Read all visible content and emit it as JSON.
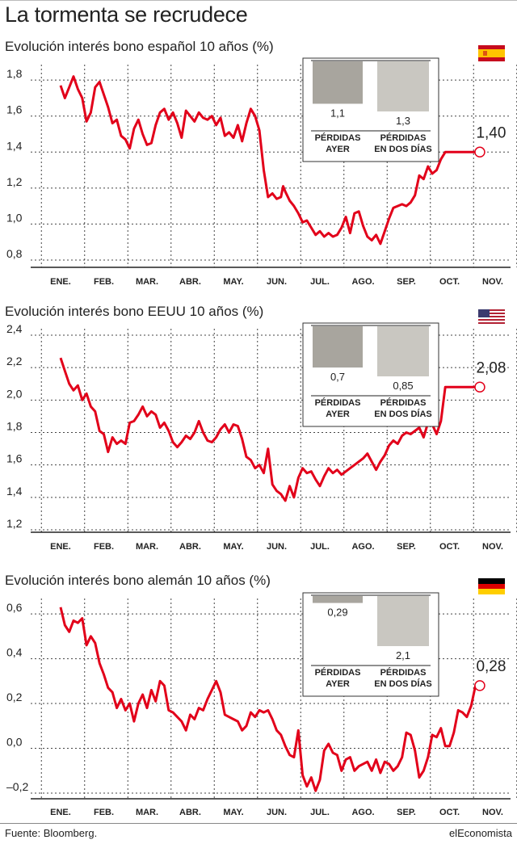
{
  "title": "La tormenta se recrudece",
  "source": "Fuente: Bloomberg.",
  "brand": "elEconomista",
  "chart_data": [
    {
      "type": "line",
      "title": "Evolución interés bono español 10 años (%)",
      "flag": "spain-flag-icon",
      "color": "#e2001a",
      "categories": [
        "ENE.",
        "FEB.",
        "MAR.",
        "ABR.",
        "MAY.",
        "JUN.",
        "JUL.",
        "AGO.",
        "SEP.",
        "OCT.",
        "NOV."
      ],
      "yticks": [
        "0,8",
        "1,0",
        "1,2",
        "1,4",
        "1,6",
        "1,8"
      ],
      "ylim": [
        0.8,
        1.85
      ],
      "last_value": 1.4,
      "last_label": "1,40",
      "x": [
        0.0,
        0.1,
        0.2,
        0.3,
        0.4,
        0.5,
        0.6,
        0.7,
        0.8,
        0.9,
        1.0,
        1.1,
        1.2,
        1.3,
        1.4,
        1.5,
        1.6,
        1.7,
        1.8,
        1.9,
        2.0,
        2.1,
        2.2,
        2.3,
        2.4,
        2.5,
        2.6,
        2.7,
        2.8,
        2.9,
        3.0,
        3.1,
        3.2,
        3.3,
        3.4,
        3.5,
        3.6,
        3.7,
        3.8,
        3.9,
        4.0,
        4.1,
        4.2,
        4.3,
        4.4,
        4.5,
        4.6,
        4.7,
        4.8,
        4.9,
        5.0,
        5.1,
        5.15,
        5.2,
        5.3,
        5.4,
        5.5,
        5.6,
        5.7,
        5.8,
        5.9,
        6.0,
        6.1,
        6.2,
        6.3,
        6.4,
        6.5,
        6.6,
        6.7,
        6.8,
        6.9,
        7.0,
        7.1,
        7.2,
        7.3,
        7.4,
        7.5,
        7.6,
        7.7,
        7.8,
        7.9,
        8.0,
        8.1,
        8.2,
        8.3,
        8.4,
        8.5,
        8.6,
        8.7,
        8.8,
        8.9,
        9.0,
        9.1,
        9.2,
        9.3,
        9.4,
        9.5,
        9.6,
        9.65,
        9.7
      ],
      "values": [
        1.77,
        1.7,
        1.76,
        1.82,
        1.75,
        1.7,
        1.57,
        1.62,
        1.76,
        1.79,
        1.72,
        1.65,
        1.56,
        1.58,
        1.49,
        1.47,
        1.42,
        1.53,
        1.58,
        1.5,
        1.44,
        1.45,
        1.55,
        1.62,
        1.64,
        1.58,
        1.62,
        1.56,
        1.48,
        1.63,
        1.6,
        1.57,
        1.62,
        1.59,
        1.58,
        1.6,
        1.55,
        1.59,
        1.49,
        1.51,
        1.48,
        1.55,
        1.46,
        1.56,
        1.64,
        1.6,
        1.52,
        1.3,
        1.15,
        1.17,
        1.14,
        1.15,
        1.21,
        1.18,
        1.13,
        1.1,
        1.06,
        1.01,
        1.02,
        0.98,
        0.94,
        0.96,
        0.93,
        0.95,
        0.93,
        0.94,
        0.98,
        1.04,
        0.95,
        1.06,
        1.07,
        0.99,
        0.93,
        0.91,
        0.94,
        0.89,
        0.96,
        1.03,
        1.09,
        1.1,
        1.11,
        1.1,
        1.12,
        1.16,
        1.27,
        1.25,
        1.32,
        1.28,
        1.3,
        1.36,
        1.4,
        1.4,
        1.4,
        1.4,
        1.4,
        1.4,
        1.4,
        1.4,
        1.4,
        1.4
      ],
      "inset": {
        "bars": [
          {
            "value": 1.1,
            "label": "1,1",
            "caption1": "PÉRDIDAS",
            "caption2": "AYER",
            "color": "#a8a59e"
          },
          {
            "value": 1.3,
            "label": "1,3",
            "caption1": "PÉRDIDAS",
            "caption2": "EN DOS DÍAS",
            "color": "#c9c7c1"
          }
        ]
      }
    },
    {
      "type": "line",
      "title": "Evolución interés bono EEUU 10 años (%)",
      "flag": "usa-flag-icon",
      "color": "#e2001a",
      "categories": [
        "ENE.",
        "FEB.",
        "MAR.",
        "ABR.",
        "MAY.",
        "JUN.",
        "JUL.",
        "AGO.",
        "SEP.",
        "OCT.",
        "NOV."
      ],
      "yticks": [
        "1,2",
        "1,4",
        "1,6",
        "1,8",
        "2,0",
        "2,2",
        "2,4"
      ],
      "ylim": [
        1.2,
        2.4
      ],
      "last_value": 2.08,
      "last_label": "2,08",
      "x": [
        0.0,
        0.1,
        0.2,
        0.3,
        0.4,
        0.5,
        0.6,
        0.7,
        0.8,
        0.9,
        1.0,
        1.1,
        1.2,
        1.3,
        1.4,
        1.5,
        1.6,
        1.7,
        1.8,
        1.9,
        2.0,
        2.1,
        2.2,
        2.3,
        2.4,
        2.5,
        2.6,
        2.7,
        2.8,
        2.9,
        3.0,
        3.1,
        3.2,
        3.3,
        3.4,
        3.5,
        3.6,
        3.7,
        3.8,
        3.9,
        4.0,
        4.1,
        4.2,
        4.3,
        4.4,
        4.5,
        4.6,
        4.7,
        4.8,
        4.9,
        5.0,
        5.1,
        5.2,
        5.3,
        5.4,
        5.5,
        5.6,
        5.7,
        5.8,
        5.9,
        6.0,
        6.1,
        6.2,
        6.3,
        6.4,
        6.5,
        6.6,
        6.7,
        6.8,
        6.9,
        7.0,
        7.1,
        7.2,
        7.3,
        7.4,
        7.5,
        7.6,
        7.7,
        7.8,
        7.9,
        8.0,
        8.1,
        8.2,
        8.3,
        8.4,
        8.5,
        8.6,
        8.7,
        8.8,
        8.9,
        9.0,
        9.1,
        9.2,
        9.3,
        9.4,
        9.5,
        9.6,
        9.65,
        9.7
      ],
      "values": [
        2.26,
        2.18,
        2.1,
        2.06,
        2.09,
        2.0,
        2.04,
        1.96,
        1.93,
        1.81,
        1.79,
        1.68,
        1.77,
        1.73,
        1.75,
        1.73,
        1.86,
        1.87,
        1.91,
        1.96,
        1.9,
        1.93,
        1.91,
        1.83,
        1.86,
        1.81,
        1.74,
        1.71,
        1.74,
        1.78,
        1.76,
        1.8,
        1.87,
        1.8,
        1.75,
        1.74,
        1.77,
        1.82,
        1.85,
        1.8,
        1.85,
        1.84,
        1.76,
        1.65,
        1.63,
        1.58,
        1.6,
        1.55,
        1.7,
        1.48,
        1.44,
        1.42,
        1.38,
        1.47,
        1.4,
        1.52,
        1.58,
        1.55,
        1.56,
        1.51,
        1.47,
        1.53,
        1.58,
        1.55,
        1.57,
        1.54,
        1.56,
        1.58,
        1.6,
        1.62,
        1.64,
        1.67,
        1.62,
        1.57,
        1.62,
        1.66,
        1.72,
        1.75,
        1.73,
        1.78,
        1.8,
        1.79,
        1.81,
        1.83,
        1.77,
        1.86,
        1.85,
        1.79,
        1.87,
        2.08,
        2.08,
        2.08,
        2.08,
        2.08,
        2.08,
        2.08,
        2.08,
        2.08,
        2.08
      ],
      "inset": {
        "bars": [
          {
            "value": 0.7,
            "label": "0,7",
            "caption1": "PÉRDIDAS",
            "caption2": "AYER",
            "color": "#a8a59e"
          },
          {
            "value": 0.85,
            "label": "0,85",
            "caption1": "PÉRDIDAS",
            "caption2": "EN DOS DÍAS",
            "color": "#c9c7c1"
          }
        ]
      }
    },
    {
      "type": "line",
      "title": "Evolución interés bono alemán 10 años (%)",
      "flag": "germany-flag-icon",
      "color": "#e2001a",
      "categories": [
        "ENE.",
        "FEB.",
        "MAR.",
        "ABR.",
        "MAY.",
        "JUN.",
        "JUL.",
        "AGO.",
        "SEP.",
        "OCT.",
        "NOV."
      ],
      "yticks": [
        "–0,2",
        "0,0",
        "0,2",
        "0,4",
        "0,6"
      ],
      "ylim": [
        -0.2,
        0.64
      ],
      "last_value": 0.28,
      "last_label": "0,28",
      "x": [
        0.0,
        0.1,
        0.2,
        0.3,
        0.4,
        0.5,
        0.6,
        0.7,
        0.8,
        0.9,
        1.0,
        1.1,
        1.2,
        1.3,
        1.4,
        1.5,
        1.6,
        1.7,
        1.8,
        1.9,
        2.0,
        2.1,
        2.2,
        2.3,
        2.4,
        2.5,
        2.6,
        2.7,
        2.8,
        2.9,
        3.0,
        3.1,
        3.2,
        3.3,
        3.4,
        3.5,
        3.6,
        3.7,
        3.8,
        3.9,
        4.0,
        4.1,
        4.2,
        4.3,
        4.4,
        4.5,
        4.6,
        4.7,
        4.8,
        4.9,
        5.0,
        5.1,
        5.2,
        5.3,
        5.4,
        5.5,
        5.6,
        5.7,
        5.8,
        5.9,
        6.0,
        6.1,
        6.2,
        6.3,
        6.4,
        6.5,
        6.6,
        6.7,
        6.8,
        6.9,
        7.0,
        7.1,
        7.2,
        7.3,
        7.4,
        7.5,
        7.6,
        7.7,
        7.8,
        7.9,
        8.0,
        8.1,
        8.2,
        8.3,
        8.4,
        8.5,
        8.6,
        8.7,
        8.8,
        8.9,
        9.0,
        9.1,
        9.2,
        9.3,
        9.4,
        9.5,
        9.6,
        9.65,
        9.7
      ],
      "values": [
        0.63,
        0.55,
        0.52,
        0.57,
        0.56,
        0.58,
        0.46,
        0.5,
        0.47,
        0.38,
        0.33,
        0.27,
        0.25,
        0.18,
        0.22,
        0.17,
        0.2,
        0.12,
        0.2,
        0.24,
        0.18,
        0.26,
        0.21,
        0.3,
        0.28,
        0.17,
        0.16,
        0.14,
        0.12,
        0.08,
        0.15,
        0.13,
        0.18,
        0.17,
        0.22,
        0.26,
        0.3,
        0.25,
        0.15,
        0.14,
        0.13,
        0.12,
        0.08,
        0.1,
        0.16,
        0.14,
        0.17,
        0.16,
        0.17,
        0.13,
        0.08,
        0.06,
        0.01,
        -0.03,
        -0.04,
        0.08,
        -0.12,
        -0.17,
        -0.13,
        -0.19,
        -0.14,
        -0.01,
        0.02,
        -0.02,
        -0.03,
        -0.1,
        -0.05,
        -0.04,
        -0.1,
        -0.08,
        -0.07,
        -0.06,
        -0.1,
        -0.05,
        -0.11,
        -0.06,
        -0.07,
        -0.1,
        -0.08,
        -0.04,
        0.07,
        0.06,
        -0.01,
        -0.13,
        -0.1,
        -0.04,
        0.06,
        0.05,
        0.09,
        0.01,
        0.01,
        0.07,
        0.17,
        0.16,
        0.14,
        0.19,
        0.28,
        0.28,
        0.28
      ],
      "inset": {
        "bars": [
          {
            "value": 0.29,
            "label": "0,29",
            "caption1": "PÉRDIDAS",
            "caption2": "AYER",
            "color": "#a8a59e"
          },
          {
            "value": 2.1,
            "label": "2,1",
            "caption1": "PÉRDIDAS",
            "caption2": "EN DOS DÍAS",
            "color": "#c9c7c1"
          }
        ]
      }
    }
  ]
}
